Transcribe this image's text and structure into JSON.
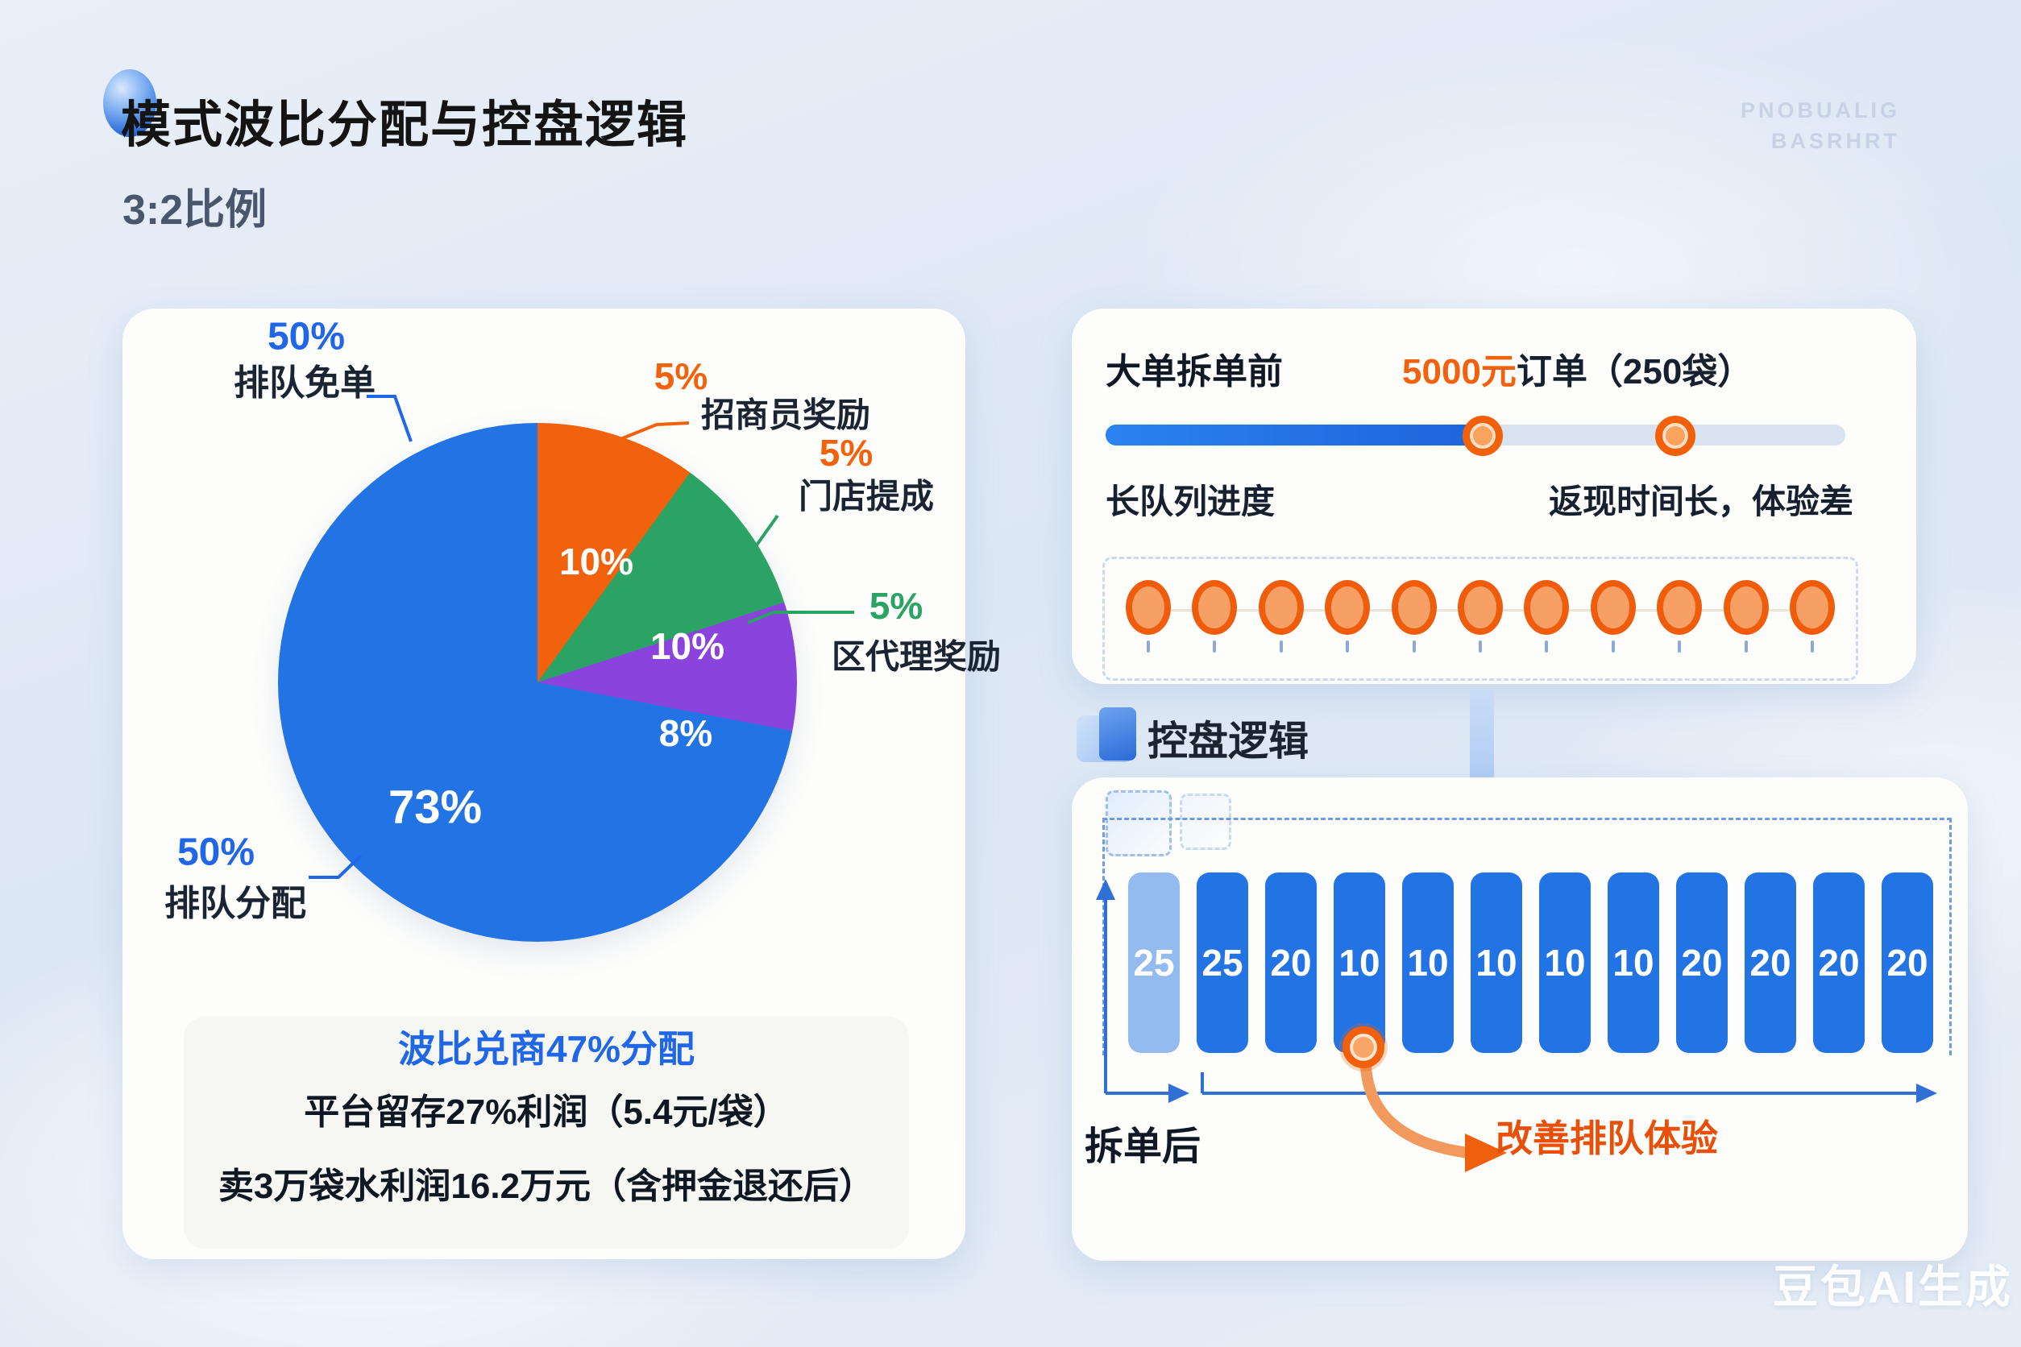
{
  "header": {
    "title": "模式波比分配与控盘逻辑",
    "subtitle": "3:2比例"
  },
  "watermarks": {
    "top_line1": "PNOBUALIG",
    "top_line2": "BASRHRT",
    "bottom": "豆包AI生成"
  },
  "chart_data": [
    {
      "type": "pie",
      "title": "模式波比分配（3:2比例）",
      "unit": "%",
      "segments": [
        {
          "name": "orange-slice",
          "label": "10%",
          "value": 10,
          "color": "#f2610c"
        },
        {
          "name": "green-slice",
          "label": "10%",
          "value": 10,
          "color": "#2ba364"
        },
        {
          "name": "purple-slice",
          "label": "8%",
          "value": 8,
          "color": "#8a43dd"
        },
        {
          "name": "blue-slice",
          "label": "73%",
          "value": 73,
          "color": "#2273e3"
        }
      ],
      "callouts": [
        {
          "pct": "50%",
          "text": "排队免单",
          "color": "#1f66e8"
        },
        {
          "pct": "5%",
          "text": "招商员奖励",
          "color": "#f2610c"
        },
        {
          "pct": "5%",
          "text": "门店提成",
          "color": "#f2610c"
        },
        {
          "pct": "5%",
          "text": "区代理奖励",
          "color": "#2ba364"
        },
        {
          "pct": "50%",
          "text": "排队分配",
          "color": "#1f66e8"
        }
      ],
      "legend_position": "outside",
      "grid": false
    },
    {
      "type": "bar",
      "title": "拆单后队列",
      "values": [
        25,
        25,
        20,
        10,
        10,
        10,
        10,
        10,
        20,
        20,
        20,
        20
      ],
      "ylim": [
        0,
        25
      ],
      "grid": false
    }
  ],
  "summary_box": {
    "title": "波比兑商47%分配",
    "line1": "平台留存27%利润（5.4元/袋）",
    "line2": "卖3万袋水利润16.2万元（含押金退还后）"
  },
  "split_panel": {
    "heading": "大单拆单前",
    "order_amount": "5000元",
    "order_detail": "订单（250袋）",
    "slider": {
      "fill_pct": 51,
      "marker1_pct": 51,
      "marker2_pct": 77
    },
    "label_left": "长队列进度",
    "label_right": "返现时间长，体验差",
    "dot_count": 11
  },
  "control_panel": {
    "heading": "控盘逻辑",
    "bars": [
      "25",
      "25",
      "20",
      "10",
      "10",
      "10",
      "10",
      "10",
      "20",
      "20",
      "20",
      "20"
    ],
    "label_after": "拆单后",
    "label_improve": "改善排队体验"
  }
}
